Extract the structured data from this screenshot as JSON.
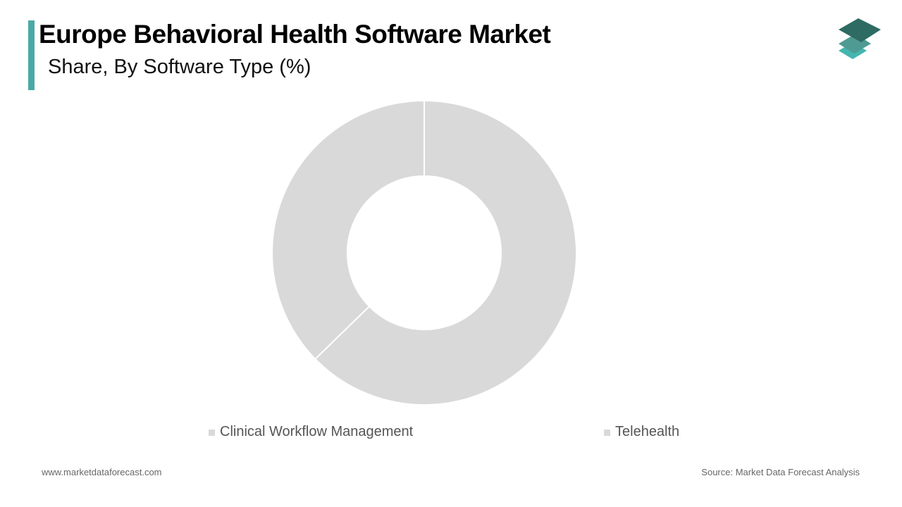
{
  "header": {
    "title": "Europe Behavioral Health Software Market",
    "subtitle": "Share, By Software Type (%)",
    "accent_color": "#4aa9a6"
  },
  "logo": {
    "icon": "stacked-layers-icon",
    "colors": [
      "#2e6b63",
      "#4f9a92",
      "#45b5b0"
    ]
  },
  "legend": [
    {
      "label": "Clinical Workflow Management",
      "color": "#d9d9d9"
    },
    {
      "label": "Telehealth",
      "color": "#d9d9d9"
    }
  ],
  "footer": {
    "website": "www.marketdataforecast.com",
    "source": "Source: Market Data Forecast Analysis"
  },
  "chart_data": {
    "type": "pie",
    "subtype": "donut",
    "title": "Europe Behavioral Health Software Market",
    "subtitle": "Share, By Software Type (%)",
    "categories": [
      "Clinical Workflow Management",
      "Telehealth"
    ],
    "values": [
      62.7,
      37.3
    ],
    "colors": [
      "#d9d9d9",
      "#d9d9d9"
    ],
    "data_labels": false,
    "legend_position": "bottom",
    "start_angle_deg": 0,
    "direction": "clockwise"
  }
}
